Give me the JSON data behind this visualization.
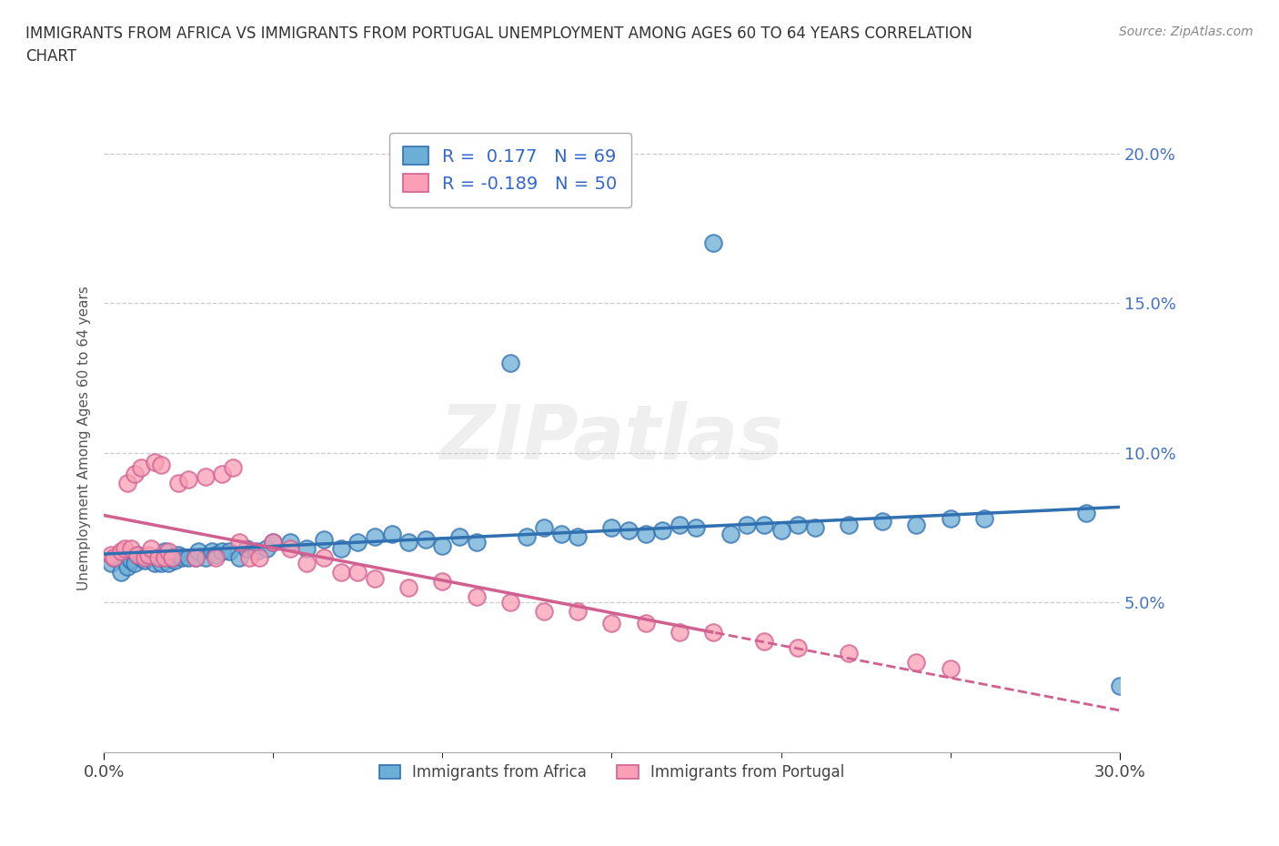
{
  "title": "IMMIGRANTS FROM AFRICA VS IMMIGRANTS FROM PORTUGAL UNEMPLOYMENT AMONG AGES 60 TO 64 YEARS CORRELATION\nCHART",
  "source": "Source: ZipAtlas.com",
  "ylabel": "Unemployment Among Ages 60 to 64 years",
  "africa_R": 0.177,
  "africa_N": 69,
  "portugal_R": -0.189,
  "portugal_N": 50,
  "xlim": [
    0.0,
    0.3
  ],
  "ylim": [
    0.0,
    0.21
  ],
  "xtick_positions": [
    0.0,
    0.3
  ],
  "xtick_labels": [
    "0.0%",
    "30.0%"
  ],
  "yticks_right": [
    0.05,
    0.1,
    0.15,
    0.2
  ],
  "ytick_labels_right": [
    "5.0%",
    "10.0%",
    "15.0%",
    "20.0%"
  ],
  "color_africa": "#6baed6",
  "color_portugal": "#fa9fb5",
  "color_africa_line": "#3070b0",
  "color_portugal_line": "#d06090",
  "watermark": "ZIPatlas",
  "africa_x": [
    0.002,
    0.003,
    0.005,
    0.007,
    0.008,
    0.009,
    0.01,
    0.011,
    0.012,
    0.013,
    0.015,
    0.016,
    0.017,
    0.018,
    0.019,
    0.02,
    0.021,
    0.022,
    0.023,
    0.025,
    0.027,
    0.028,
    0.03,
    0.032,
    0.033,
    0.035,
    0.037,
    0.04,
    0.042,
    0.045,
    0.048,
    0.05,
    0.055,
    0.06,
    0.065,
    0.07,
    0.075,
    0.08,
    0.085,
    0.09,
    0.095,
    0.1,
    0.105,
    0.11,
    0.12,
    0.125,
    0.13,
    0.135,
    0.14,
    0.15,
    0.155,
    0.16,
    0.165,
    0.17,
    0.175,
    0.18,
    0.185,
    0.19,
    0.195,
    0.2,
    0.205,
    0.21,
    0.22,
    0.23,
    0.24,
    0.25,
    0.26,
    0.29,
    0.3
  ],
  "africa_y": [
    0.063,
    0.065,
    0.06,
    0.062,
    0.064,
    0.063,
    0.066,
    0.065,
    0.064,
    0.065,
    0.063,
    0.065,
    0.063,
    0.067,
    0.063,
    0.065,
    0.064,
    0.066,
    0.065,
    0.065,
    0.065,
    0.067,
    0.065,
    0.067,
    0.066,
    0.067,
    0.067,
    0.065,
    0.068,
    0.067,
    0.068,
    0.07,
    0.07,
    0.068,
    0.071,
    0.068,
    0.07,
    0.072,
    0.073,
    0.07,
    0.071,
    0.069,
    0.072,
    0.07,
    0.13,
    0.072,
    0.075,
    0.073,
    0.072,
    0.075,
    0.074,
    0.073,
    0.074,
    0.076,
    0.075,
    0.17,
    0.073,
    0.076,
    0.076,
    0.074,
    0.076,
    0.075,
    0.076,
    0.077,
    0.076,
    0.078,
    0.078,
    0.08,
    0.022
  ],
  "portugal_x": [
    0.002,
    0.003,
    0.005,
    0.006,
    0.007,
    0.008,
    0.009,
    0.01,
    0.011,
    0.012,
    0.013,
    0.014,
    0.015,
    0.016,
    0.017,
    0.018,
    0.019,
    0.02,
    0.022,
    0.025,
    0.027,
    0.03,
    0.033,
    0.035,
    0.038,
    0.04,
    0.043,
    0.046,
    0.05,
    0.055,
    0.06,
    0.065,
    0.07,
    0.075,
    0.08,
    0.09,
    0.1,
    0.11,
    0.12,
    0.13,
    0.14,
    0.15,
    0.16,
    0.17,
    0.18,
    0.195,
    0.205,
    0.22,
    0.24,
    0.25
  ],
  "portugal_y": [
    0.066,
    0.065,
    0.067,
    0.068,
    0.09,
    0.068,
    0.093,
    0.066,
    0.095,
    0.065,
    0.066,
    0.068,
    0.097,
    0.065,
    0.096,
    0.065,
    0.067,
    0.065,
    0.09,
    0.091,
    0.065,
    0.092,
    0.065,
    0.093,
    0.095,
    0.07,
    0.065,
    0.065,
    0.07,
    0.068,
    0.063,
    0.065,
    0.06,
    0.06,
    0.058,
    0.055,
    0.057,
    0.052,
    0.05,
    0.047,
    0.047,
    0.043,
    0.043,
    0.04,
    0.04,
    0.037,
    0.035,
    0.033,
    0.03,
    0.028
  ]
}
